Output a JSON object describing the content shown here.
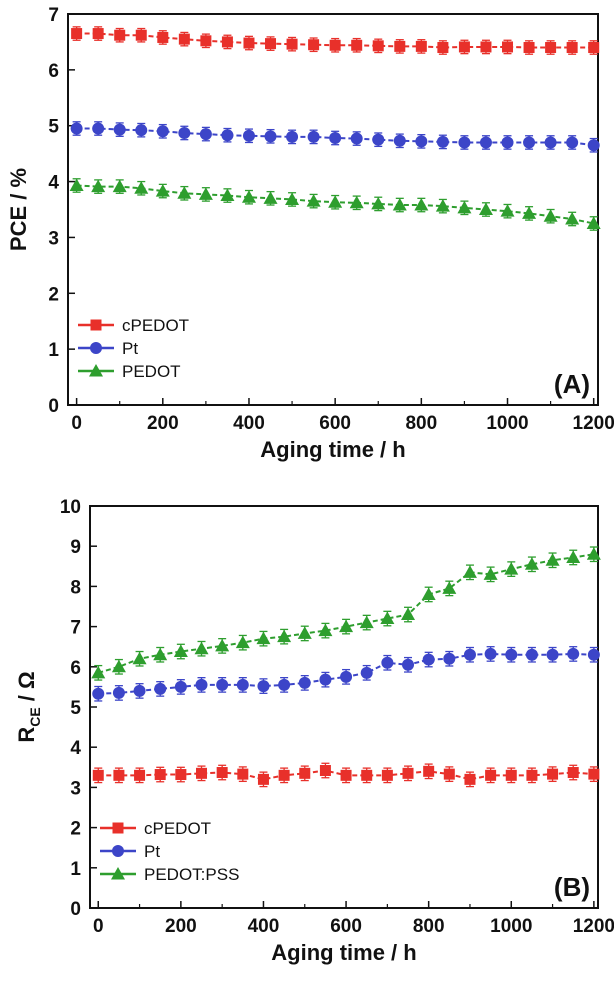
{
  "chart_data": [
    {
      "type": "line",
      "panel_label": "(A)",
      "xlabel": "Aging time / h",
      "ylabel": "PCE / %",
      "xlim": [
        -20,
        1210
      ],
      "ylim": [
        0,
        7
      ],
      "xticks": [
        0,
        200,
        400,
        600,
        800,
        1000,
        1200
      ],
      "yticks": [
        0,
        1,
        2,
        3,
        4,
        5,
        6,
        7
      ],
      "grid": false,
      "legend_position": "bottom-left",
      "x": [
        0,
        50,
        100,
        150,
        200,
        250,
        300,
        350,
        400,
        450,
        500,
        550,
        600,
        650,
        700,
        750,
        800,
        850,
        900,
        950,
        1000,
        1050,
        1100,
        1150,
        1200
      ],
      "series": [
        {
          "name": "cPEDOT",
          "color": "#e8302a",
          "marker": "square",
          "values": [
            6.65,
            6.65,
            6.62,
            6.62,
            6.58,
            6.55,
            6.52,
            6.5,
            6.48,
            6.47,
            6.46,
            6.45,
            6.44,
            6.44,
            6.43,
            6.42,
            6.42,
            6.4,
            6.41,
            6.41,
            6.41,
            6.4,
            6.4,
            6.4,
            6.4
          ]
        },
        {
          "name": "Pt",
          "color": "#3c45c8",
          "marker": "circle",
          "values": [
            4.95,
            4.95,
            4.93,
            4.92,
            4.9,
            4.87,
            4.85,
            4.83,
            4.82,
            4.81,
            4.8,
            4.8,
            4.78,
            4.77,
            4.75,
            4.73,
            4.72,
            4.71,
            4.7,
            4.7,
            4.7,
            4.7,
            4.7,
            4.7,
            4.65
          ]
        },
        {
          "name": "PEDOT",
          "color": "#2e9e2e",
          "marker": "triangle",
          "values": [
            3.93,
            3.91,
            3.91,
            3.88,
            3.83,
            3.79,
            3.77,
            3.75,
            3.72,
            3.7,
            3.68,
            3.65,
            3.63,
            3.62,
            3.6,
            3.58,
            3.58,
            3.56,
            3.53,
            3.5,
            3.47,
            3.43,
            3.38,
            3.33,
            3.25
          ]
        }
      ]
    },
    {
      "type": "line",
      "panel_label": "(B)",
      "xlabel": "Aging time / h",
      "ylabel": "R",
      "ylabel_subscript": "CE",
      "ylabel_suffix": " / Ω",
      "xlim": [
        -20,
        1210
      ],
      "ylim": [
        0,
        10
      ],
      "xticks": [
        0,
        200,
        400,
        600,
        800,
        1000,
        1200
      ],
      "yticks": [
        0,
        1,
        2,
        3,
        4,
        5,
        6,
        7,
        8,
        9,
        10
      ],
      "grid": false,
      "legend_position": "bottom-left",
      "x": [
        0,
        50,
        100,
        150,
        200,
        250,
        300,
        350,
        400,
        450,
        500,
        550,
        600,
        650,
        700,
        750,
        800,
        850,
        900,
        950,
        1000,
        1050,
        1100,
        1150,
        1200
      ],
      "series": [
        {
          "name": "cPEDOT",
          "color": "#e8302a",
          "marker": "square",
          "values": [
            3.3,
            3.3,
            3.3,
            3.32,
            3.32,
            3.35,
            3.37,
            3.33,
            3.2,
            3.3,
            3.35,
            3.42,
            3.3,
            3.3,
            3.3,
            3.35,
            3.4,
            3.33,
            3.2,
            3.3,
            3.3,
            3.3,
            3.33,
            3.37,
            3.33
          ]
        },
        {
          "name": "Pt",
          "color": "#3c45c8",
          "marker": "circle",
          "values": [
            5.33,
            5.35,
            5.4,
            5.45,
            5.5,
            5.55,
            5.55,
            5.55,
            5.52,
            5.55,
            5.6,
            5.68,
            5.75,
            5.85,
            6.1,
            6.05,
            6.18,
            6.2,
            6.3,
            6.32,
            6.3,
            6.3,
            6.3,
            6.32,
            6.3
          ]
        },
        {
          "name": "PEDOT:PSS",
          "color": "#2e9e2e",
          "marker": "triangle",
          "values": [
            5.85,
            6.0,
            6.2,
            6.3,
            6.38,
            6.45,
            6.52,
            6.6,
            6.7,
            6.75,
            6.83,
            6.9,
            7.0,
            7.1,
            7.2,
            7.3,
            7.8,
            7.95,
            8.35,
            8.3,
            8.43,
            8.55,
            8.65,
            8.72,
            8.8
          ]
        }
      ]
    }
  ]
}
